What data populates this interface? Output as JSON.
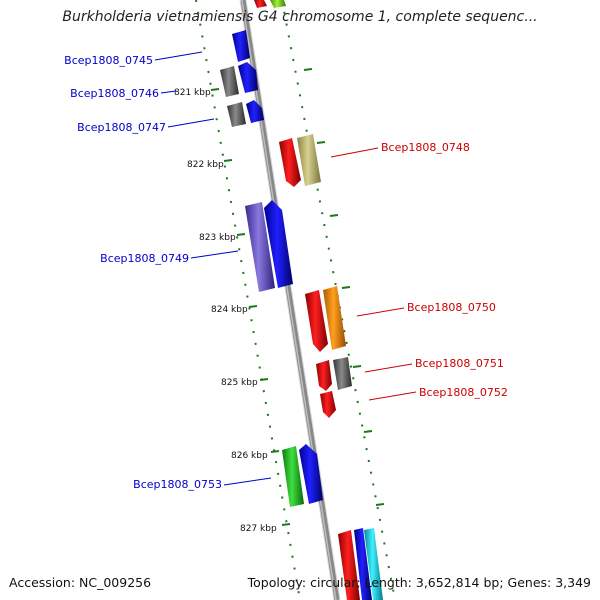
{
  "title": "Burkholderia vietnamiensis G4 chromosome 1, complete sequenc...",
  "footer": {
    "accession": "Accession: NC_009256",
    "summary": "Topology: circular; Length: 3,652,814 bp; Genes: 3,349"
  },
  "colors": {
    "label_blue": "#0000cc",
    "label_red": "#cc0000",
    "tick_green": "#1a7a1a",
    "backbone": "#888888"
  },
  "kbp_ticks": [
    {
      "label": "821 kbp"
    },
    {
      "label": "822 kbp"
    },
    {
      "label": "823 kbp"
    },
    {
      "label": "824 kbp"
    },
    {
      "label": "825 kbp"
    },
    {
      "label": "826 kbp"
    },
    {
      "label": "827 kbp"
    }
  ],
  "gene_labels": [
    {
      "label": "Bcep1808_0745",
      "side": "left"
    },
    {
      "label": "Bcep1808_0746",
      "side": "left"
    },
    {
      "label": "Bcep1808_0747",
      "side": "left"
    },
    {
      "label": "Bcep1808_0748",
      "side": "right"
    },
    {
      "label": "Bcep1808_0749",
      "side": "left"
    },
    {
      "label": "Bcep1808_0750",
      "side": "right"
    },
    {
      "label": "Bcep1808_0751",
      "side": "right"
    },
    {
      "label": "Bcep1808_0752",
      "side": "right"
    },
    {
      "label": "Bcep1808_0753",
      "side": "left"
    }
  ]
}
